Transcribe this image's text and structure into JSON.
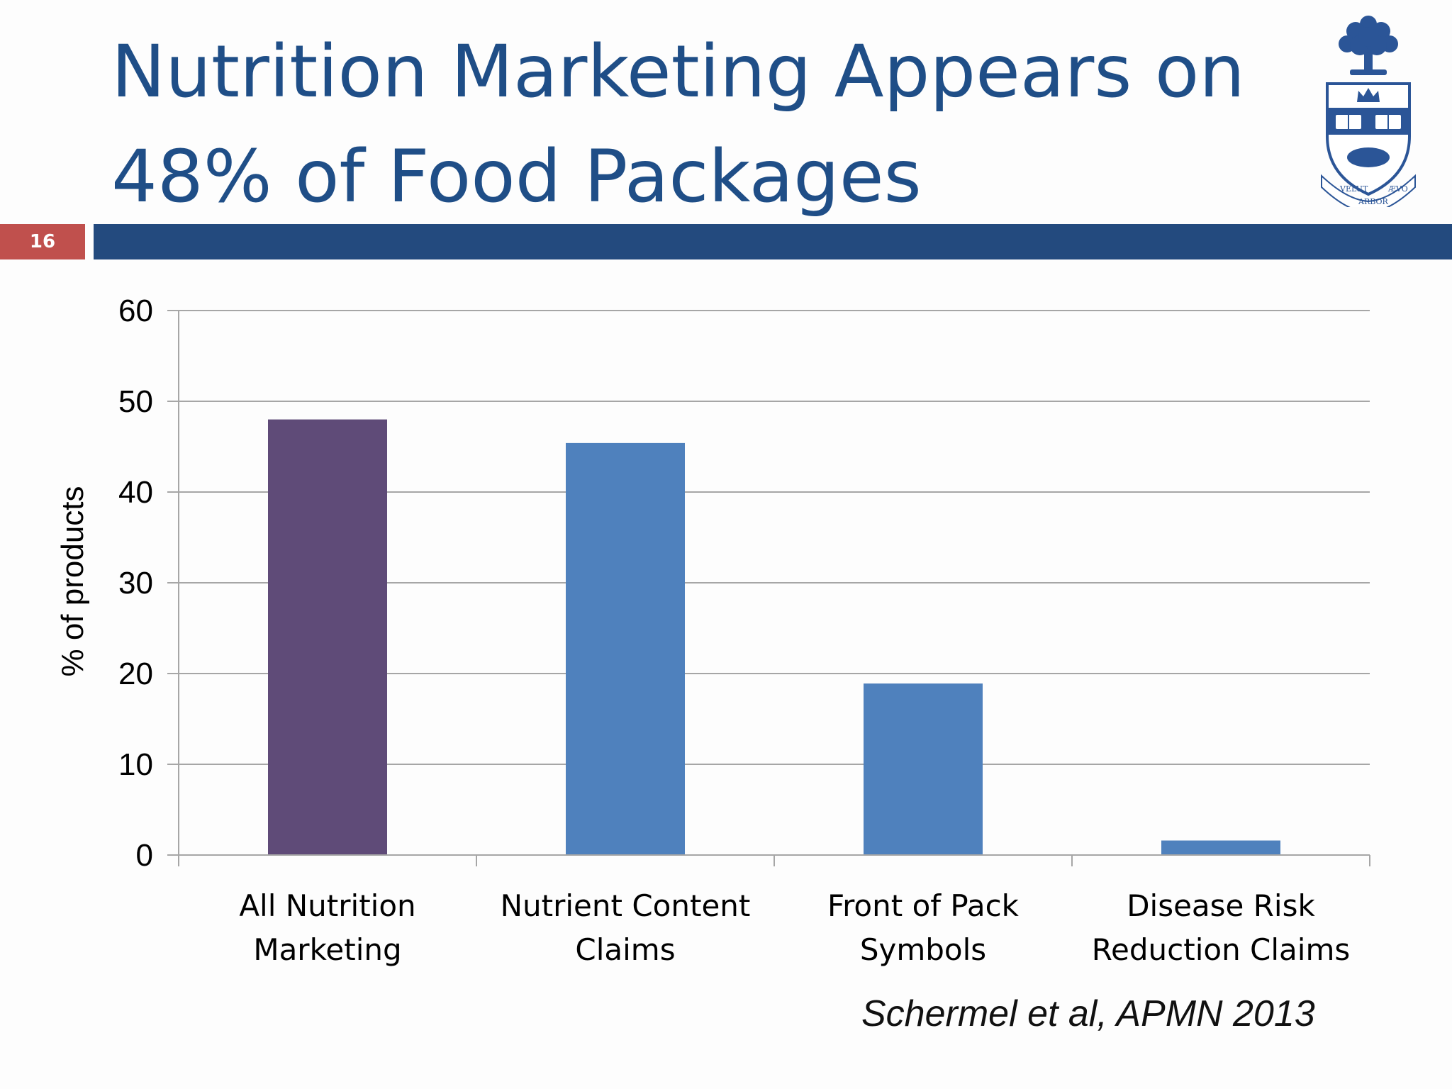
{
  "slide": {
    "number": "16",
    "title_lines": [
      "Nutrition Marketing Appears on",
      "48% of Food Packages"
    ],
    "citation": "Schermel et al, APMN 2013",
    "logo_text": [
      "VELUT",
      "ÆVO",
      "ARBOR"
    ]
  },
  "colors": {
    "title": "#1f4e87",
    "header_bar": "#234a7e",
    "slide_number_bg": "#c0504d",
    "bar_highlight": "#5f4b78",
    "bar_default": "#4f81bd",
    "gridline": "#a6a6a6"
  },
  "chart_data": {
    "type": "bar",
    "title": "",
    "xlabel": "",
    "ylabel": "% of products",
    "ylim": [
      0,
      60
    ],
    "yticks": [
      0,
      10,
      20,
      30,
      40,
      50,
      60
    ],
    "grid": true,
    "legend": "none",
    "categories": [
      [
        "All Nutrition",
        "Marketing"
      ],
      [
        "Nutrient Content",
        "Claims"
      ],
      [
        "Front of Pack",
        "Symbols"
      ],
      [
        "Disease Risk",
        "Reduction Claims"
      ]
    ],
    "values": [
      48,
      45.4,
      18.9,
      1.6
    ],
    "bar_colors": [
      "#5f4b78",
      "#4f81bd",
      "#4f81bd",
      "#4f81bd"
    ]
  }
}
